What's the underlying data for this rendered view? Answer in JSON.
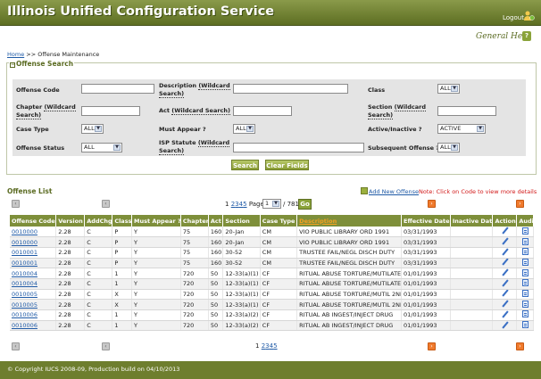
{
  "header": {
    "title": "Illinois Unified Configuration Service",
    "logout_label": "Logout",
    "help_label": "General Help",
    "help_icon_glyph": "?"
  },
  "breadcrumb": {
    "home": "Home",
    "separator": ">>",
    "current": "Offense Maintenance"
  },
  "search": {
    "legend": "Offense Search",
    "collapse_glyph": "−",
    "fields": {
      "offense_code": {
        "label": "Offense Code",
        "value": ""
      },
      "description": {
        "label": "Description",
        "wildcard": "(Wildcard Search)",
        "value": ""
      },
      "class": {
        "label": "Class",
        "value": "ALL"
      },
      "chapter": {
        "label": "Chapter",
        "wildcard": "(Wildcard Search)",
        "value": ""
      },
      "act": {
        "label": "Act",
        "wildcard": "(Wildcard Search)",
        "value": ""
      },
      "section": {
        "label": "Section",
        "wildcard": "(Wildcard Search)",
        "value": ""
      },
      "case_type": {
        "label": "Case Type",
        "value": "ALL"
      },
      "must_appear": {
        "label": "Must Appear ?",
        "value": "ALL"
      },
      "active_inactive": {
        "label": "Active/Inactive ?",
        "value": "ACTIVE"
      },
      "offense_status": {
        "label": "Offense Status",
        "value": "ALL"
      },
      "isp_statute": {
        "label": "ISP Statute",
        "wildcard": "(Wildcard Search)",
        "value": ""
      },
      "subsequent_offense": {
        "label": "Subsequent Offense ?",
        "value": "ALL"
      }
    },
    "search_button": "Search",
    "clear_button": "Clear Fields"
  },
  "list": {
    "title": "Offense List",
    "add_new": "Add New Offense",
    "note": "Note: Click on Code to view more details",
    "pager": {
      "pages": [
        "1",
        "2",
        "3",
        "4",
        "5"
      ],
      "page_label": "Page",
      "page_value": "1",
      "total": "/ 781",
      "go": "Go"
    },
    "columns": [
      "Offense Code",
      "Version",
      "AddChg",
      "Class",
      "Must Appear ?",
      "Chapter",
      "Act",
      "Section",
      "Case Type",
      "Description",
      "Effective Date",
      "Inactive Date",
      "Action",
      "Audit"
    ],
    "rows": [
      [
        "0010000",
        "2.28",
        "C",
        "P",
        "Y",
        "75",
        "160",
        "20-Jan",
        "CM",
        "VIO PUBLIC LIBRARY ORD 1991",
        "03/31/1993",
        ""
      ],
      [
        "0010000",
        "2.28",
        "C",
        "P",
        "Y",
        "75",
        "160",
        "20-Jan",
        "CM",
        "VIO PUBLIC LIBRARY ORD 1991",
        "03/31/1993",
        ""
      ],
      [
        "0010001",
        "2.28",
        "C",
        "P",
        "Y",
        "75",
        "160",
        "30-52",
        "CM",
        "TRUSTEE FAIL/NEGL DISCH DUTY",
        "03/31/1993",
        ""
      ],
      [
        "0010001",
        "2.28",
        "C",
        "P",
        "Y",
        "75",
        "160",
        "30-52",
        "CM",
        "TRUSTEE FAIL/NEGL DISCH DUTY",
        "03/31/1993",
        ""
      ],
      [
        "0010004",
        "2.28",
        "C",
        "1",
        "Y",
        "720",
        "50",
        "12-33(a)(1)",
        "CF",
        "RITUAL ABUSE TORTURE/MUTILATE",
        "01/01/1993",
        ""
      ],
      [
        "0010004",
        "2.28",
        "C",
        "1",
        "Y",
        "720",
        "50",
        "12-33(a)(1)",
        "CF",
        "RITUAL ABUSE TORTURE/MUTILATE",
        "01/01/1993",
        ""
      ],
      [
        "0010005",
        "2.28",
        "C",
        "X",
        "Y",
        "720",
        "50",
        "12-33(a)(1)",
        "CF",
        "RITUAL ABUSE TORTURE/MUTIL 2ND",
        "01/01/1993",
        ""
      ],
      [
        "0010005",
        "2.28",
        "C",
        "X",
        "Y",
        "720",
        "50",
        "12-33(a)(1)",
        "CF",
        "RITUAL ABUSE TORTURE/MUTIL 2ND",
        "01/01/1993",
        ""
      ],
      [
        "0010006",
        "2.28",
        "C",
        "1",
        "Y",
        "720",
        "50",
        "12-33(a)(2)",
        "CF",
        "RITUAL AB INGEST/INJECT DRUG",
        "01/01/1993",
        ""
      ],
      [
        "0010006",
        "2.28",
        "C",
        "1",
        "Y",
        "720",
        "50",
        "12-33(a)(2)",
        "CF",
        "RITUAL AB INGEST/INJECT DRUG",
        "01/01/1993",
        ""
      ]
    ]
  },
  "nav_glyphs": {
    "prev": "‹",
    "next": "›"
  },
  "select_arrow": "▼",
  "footer": "© Copyright IUCS 2008-09, Production build on 04/10/2013",
  "colors": {
    "header_green": "#6e7e2e",
    "accent_orange": "#f07a2c",
    "link_blue": "#1f5aa6",
    "note_red": "#d21a1a"
  }
}
